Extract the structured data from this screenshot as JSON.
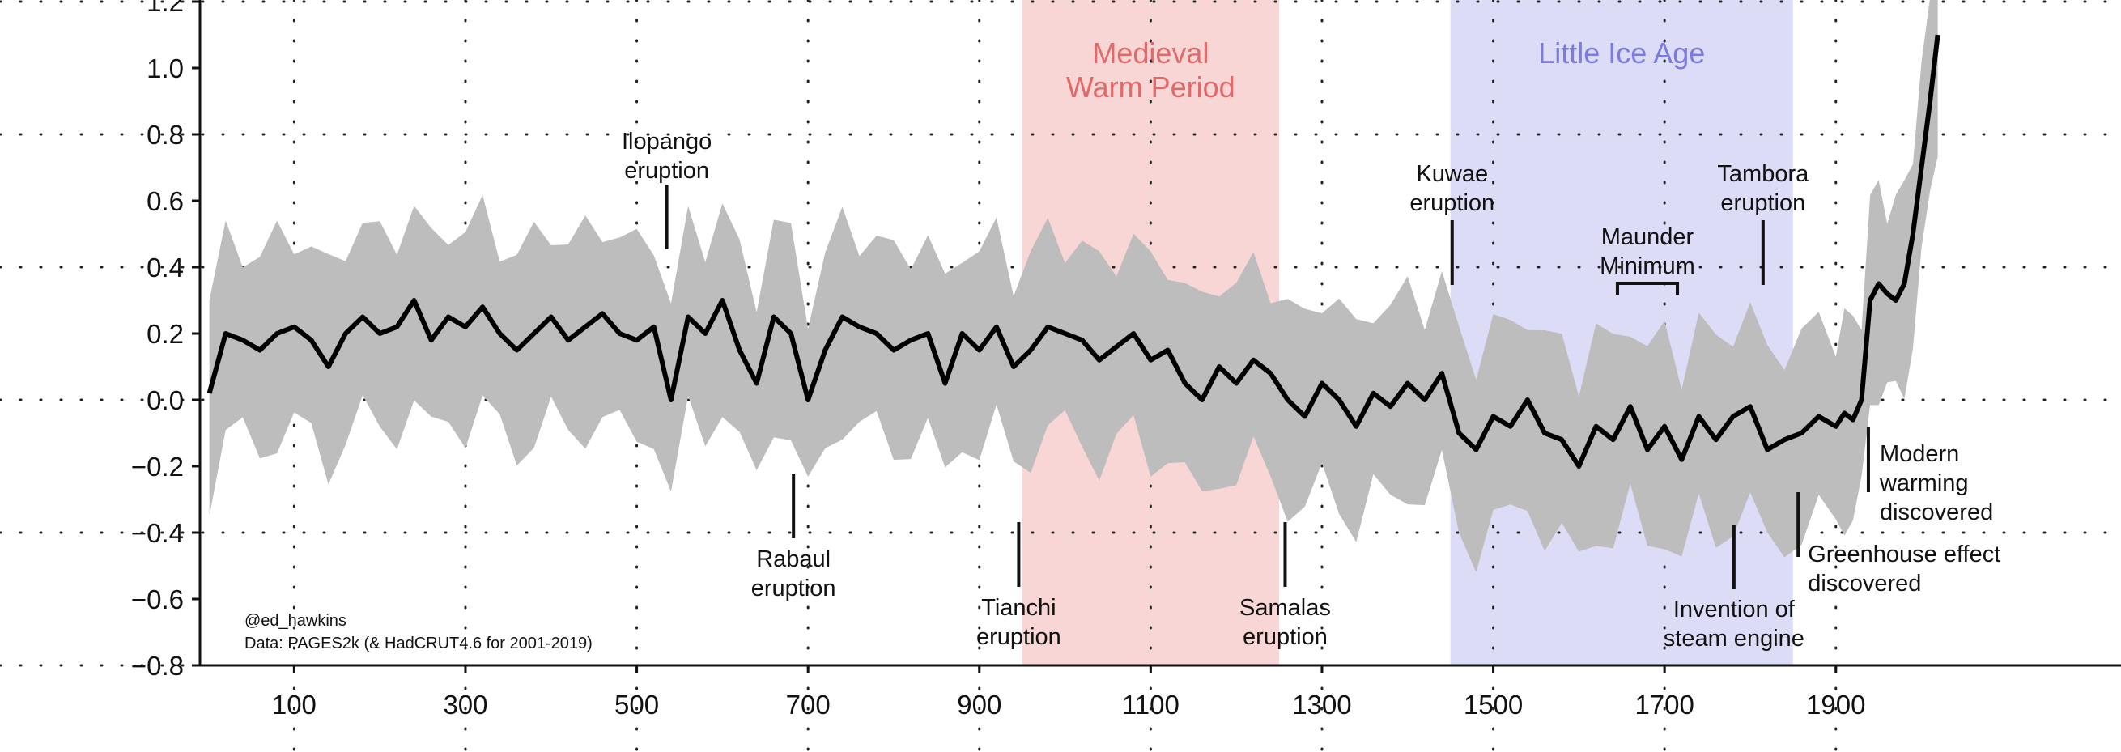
{
  "chart_data": {
    "type": "line",
    "title": "",
    "xlabel": "",
    "ylabel": "",
    "xlim": [
      -10,
      2025
    ],
    "ylim": [
      -0.8,
      1.2
    ],
    "x_ticks": [
      100,
      300,
      500,
      700,
      900,
      1100,
      1300,
      1500,
      1700,
      1900
    ],
    "y_ticks": [
      -0.8,
      -0.6,
      -0.4,
      -0.2,
      0.0,
      0.2,
      0.4,
      0.6,
      0.8,
      1.0,
      1.2
    ],
    "y_tick_labels": [
      "−0.8",
      "−0.6",
      "−0.4",
      "−0.2",
      "0.0",
      "0.2",
      "0.4",
      "0.6",
      "0.8",
      "1.0",
      "1.2"
    ],
    "grid": true,
    "periods": [
      {
        "label_lines": [
          "Medieval",
          "Warm Period"
        ],
        "start": 950,
        "end": 1250,
        "color": "#f9d6d6",
        "text_color": "#e06a6a"
      },
      {
        "label_lines": [
          "Little Ice Age"
        ],
        "start": 1450,
        "end": 1850,
        "color": "#dcdcf7",
        "text_color": "#7b7be0"
      }
    ],
    "series": [
      {
        "x": [
          1,
          20,
          40,
          60,
          80,
          100,
          120,
          140,
          160,
          180,
          200,
          220,
          240,
          260,
          280,
          300,
          320,
          340,
          360,
          380,
          400,
          420,
          440,
          460,
          480,
          500,
          520,
          540,
          560,
          580,
          600,
          620,
          640,
          660,
          680,
          700,
          720,
          740,
          760,
          780,
          800,
          820,
          840,
          860,
          880,
          900,
          920,
          940,
          960,
          980,
          1000,
          1020,
          1040,
          1060,
          1080,
          1100,
          1120,
          1140,
          1160,
          1180,
          1200,
          1220,
          1240,
          1260,
          1280,
          1300,
          1320,
          1340,
          1360,
          1380,
          1400,
          1420,
          1440,
          1460,
          1480,
          1500,
          1520,
          1540,
          1560,
          1580,
          1600,
          1620,
          1640,
          1660,
          1680,
          1700,
          1720,
          1740,
          1760,
          1780,
          1800,
          1820,
          1840,
          1860,
          1880,
          1900,
          1910,
          1920,
          1930,
          1940,
          1950,
          1960,
          1970,
          1980,
          1990,
          2000,
          2010,
          2019
        ],
        "values": [
          0.02,
          0.2,
          0.18,
          0.15,
          0.2,
          0.22,
          0.18,
          0.1,
          0.2,
          0.25,
          0.2,
          0.22,
          0.3,
          0.18,
          0.25,
          0.22,
          0.28,
          0.2,
          0.15,
          0.2,
          0.25,
          0.18,
          0.22,
          0.26,
          0.2,
          0.18,
          0.22,
          0.0,
          0.25,
          0.2,
          0.3,
          0.15,
          0.05,
          0.25,
          0.2,
          0.0,
          0.15,
          0.25,
          0.22,
          0.2,
          0.15,
          0.18,
          0.2,
          0.05,
          0.2,
          0.15,
          0.22,
          0.1,
          0.15,
          0.22,
          0.2,
          0.18,
          0.12,
          0.16,
          0.2,
          0.12,
          0.15,
          0.05,
          0.0,
          0.1,
          0.05,
          0.12,
          0.08,
          0.0,
          -0.05,
          0.05,
          0.0,
          -0.08,
          0.02,
          -0.02,
          0.05,
          0.0,
          0.08,
          -0.1,
          -0.15,
          -0.05,
          -0.08,
          0.0,
          -0.1,
          -0.12,
          -0.2,
          -0.08,
          -0.12,
          -0.02,
          -0.15,
          -0.08,
          -0.18,
          -0.05,
          -0.12,
          -0.05,
          -0.02,
          -0.15,
          -0.12,
          -0.1,
          -0.05,
          -0.08,
          -0.04,
          -0.06,
          0.0,
          0.3,
          0.35,
          0.32,
          0.3,
          0.35,
          0.5,
          0.7,
          0.9,
          1.1
        ]
      }
    ],
    "annotations": [
      {
        "label_lines": [
          "Ilopango",
          "eruption"
        ],
        "x": 535,
        "kind": "eruption",
        "side": "above"
      },
      {
        "label_lines": [
          "Rabaul",
          "eruption"
        ],
        "x": 683,
        "kind": "eruption",
        "side": "below"
      },
      {
        "label_lines": [
          "Tianchi",
          "eruption"
        ],
        "x": 946,
        "kind": "eruption",
        "side": "below"
      },
      {
        "label_lines": [
          "Samalas",
          "eruption"
        ],
        "x": 1257,
        "kind": "eruption",
        "side": "below"
      },
      {
        "label_lines": [
          "Kuwae",
          "eruption"
        ],
        "x": 1452,
        "kind": "eruption",
        "side": "above"
      },
      {
        "label_lines": [
          "Tambora",
          "eruption"
        ],
        "x": 1815,
        "kind": "eruption",
        "side": "above"
      },
      {
        "label_lines": [
          "Maunder",
          "Minimum"
        ],
        "x_start": 1645,
        "x_end": 1715,
        "kind": "bracket"
      },
      {
        "label_lines": [
          "Invention of",
          "steam engine"
        ],
        "x": 1781,
        "kind": "event",
        "side": "below"
      },
      {
        "label_lines": [
          "Greenhouse effect",
          "discovered"
        ],
        "x": 1856,
        "kind": "event",
        "side": "below"
      },
      {
        "label_lines": [
          "Modern",
          "warming",
          "discovered"
        ],
        "x": 1938,
        "kind": "event",
        "side": "right"
      }
    ],
    "credit_lines": [
      "@ed_hawkins",
      "Data: PAGES2k (& HadCRUT4.6 for 2001-2019)"
    ]
  }
}
